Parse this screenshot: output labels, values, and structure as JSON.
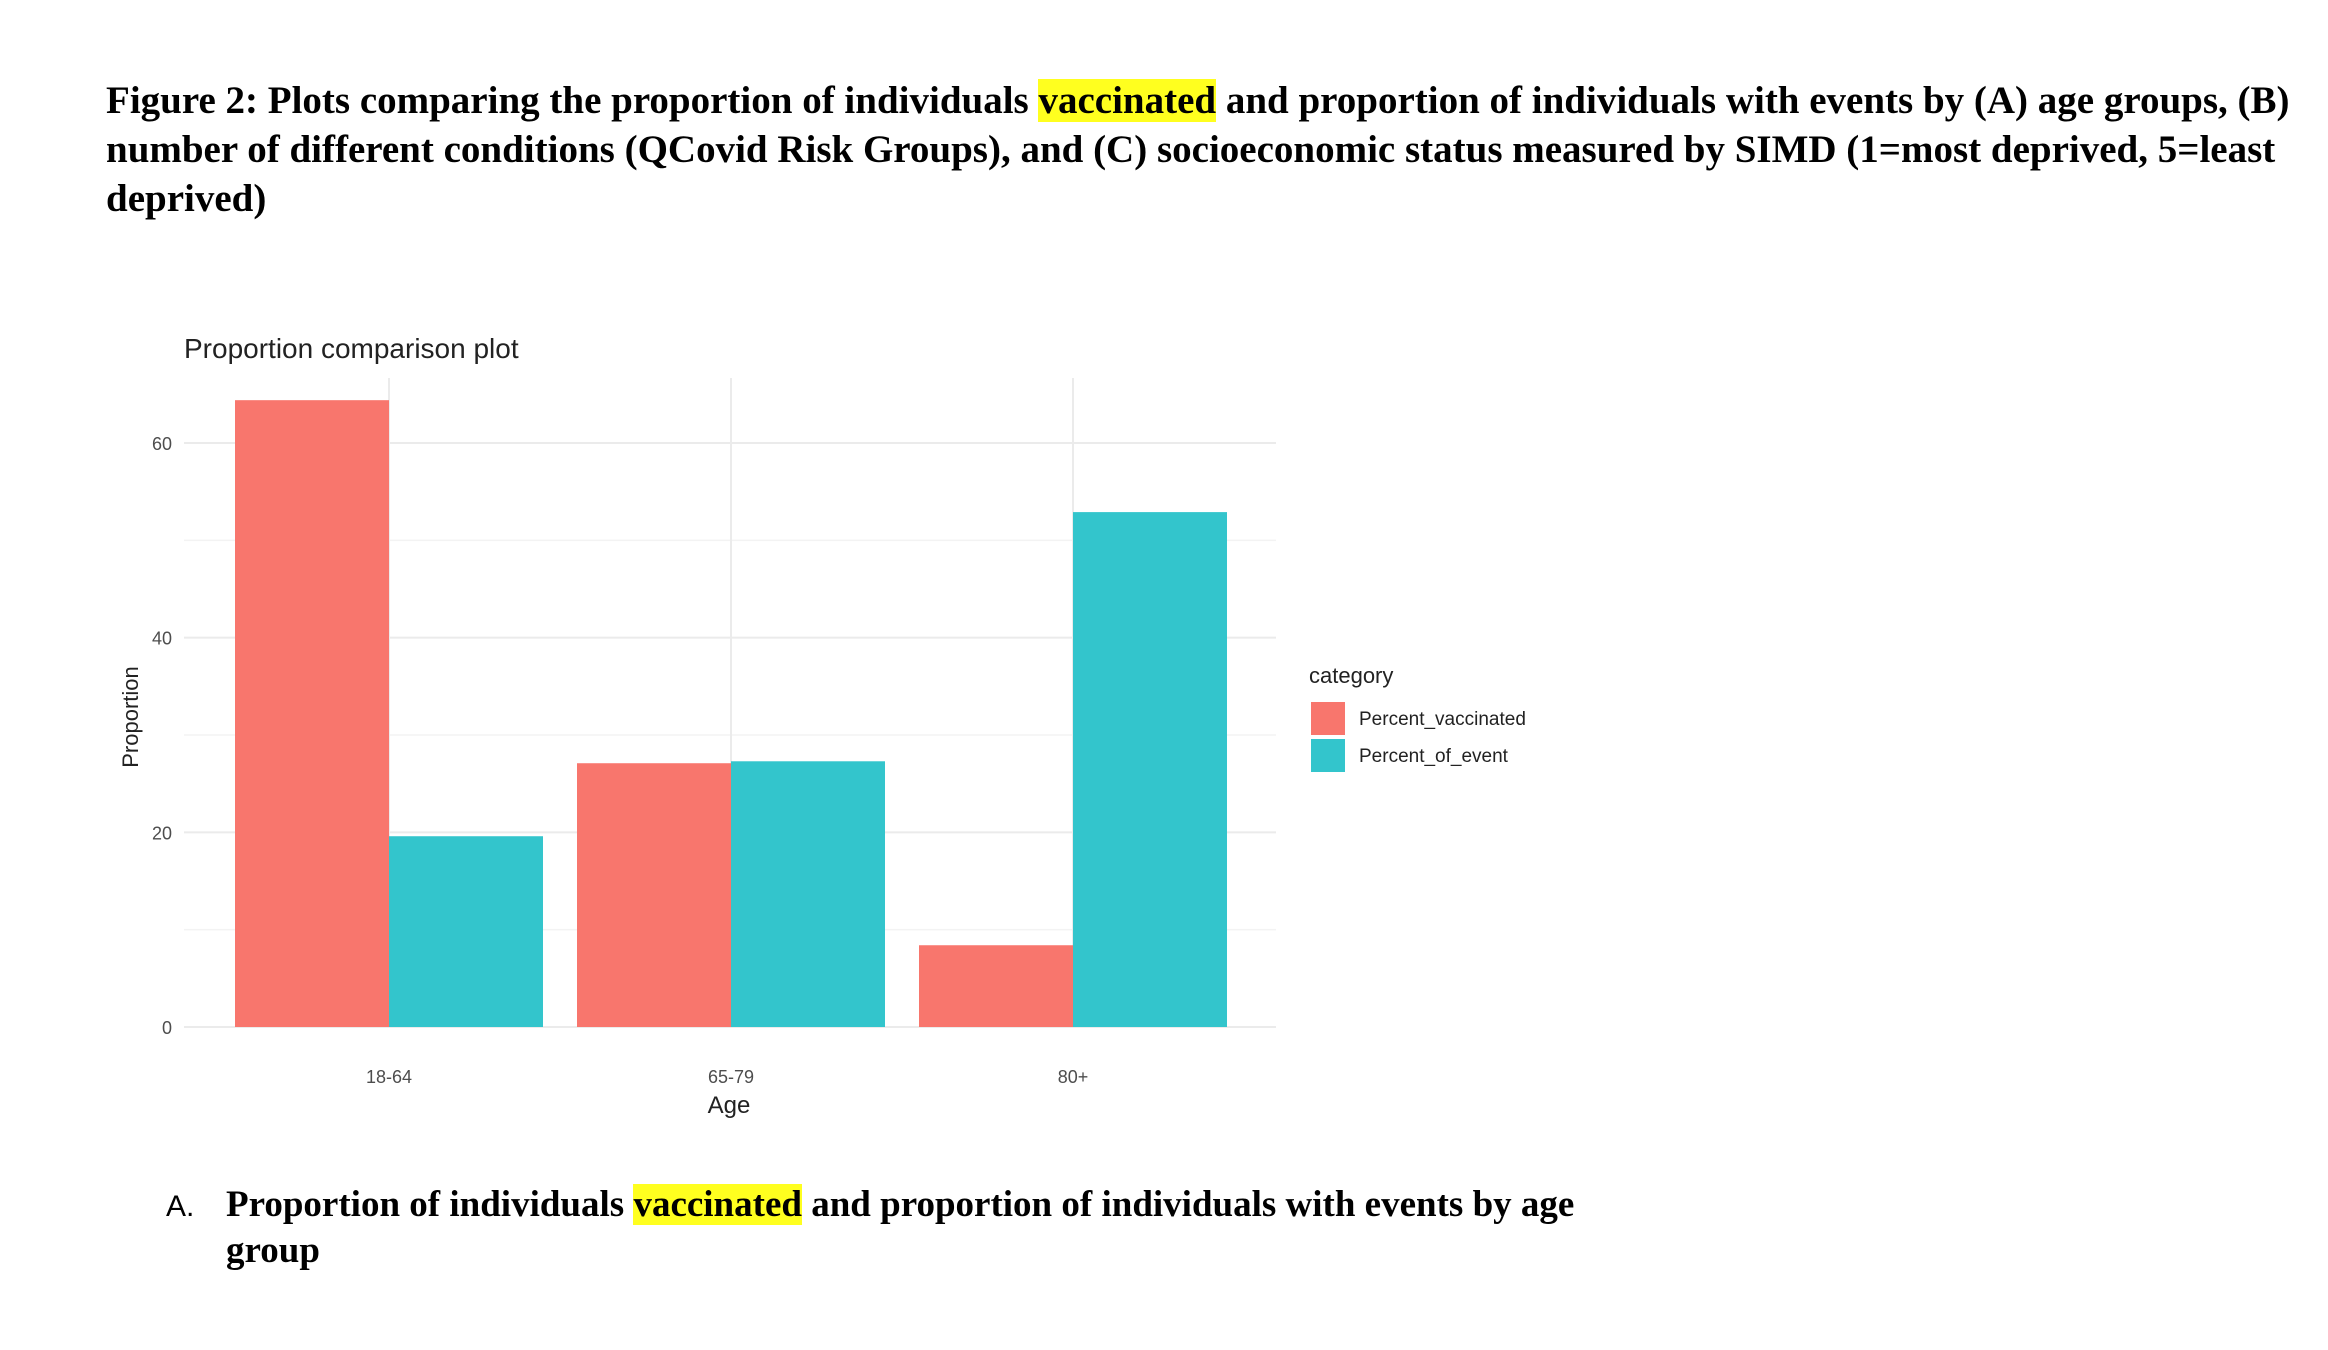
{
  "caption": {
    "prefix": "Figure 2: Plots comparing the proportion of individuals ",
    "highlight": "vaccinated",
    "suffix": " and proportion of individuals with events by (A) age groups, (B) number of different conditions (QCovid Risk Groups), and (C) socioeconomic status measured by SIMD (1=most deprived, 5=least deprived)"
  },
  "subcaption": {
    "letter": "A.",
    "prefix": "Proportion of individuals ",
    "highlight": "vaccinated",
    "suffix": " and proportion of individuals with events by age group"
  },
  "colors": {
    "highlight": "#ffff1f"
  },
  "chart_data": {
    "type": "bar",
    "title": "Proportion comparison plot",
    "xlabel": "Age",
    "ylabel": "Proportion",
    "categories": [
      "18-64",
      "65-79",
      "80+"
    ],
    "series": [
      {
        "name": "Percent_vaccinated",
        "values": [
          64.4,
          27.1,
          8.4
        ],
        "color": "#f8766d"
      },
      {
        "name": "Percent_of_event",
        "values": [
          19.6,
          27.3,
          52.9
        ],
        "color": "#33c5cc"
      }
    ],
    "yticks": [
      0,
      20,
      40,
      60
    ],
    "ylim": [
      0,
      67.5
    ],
    "legend_title": "category",
    "legend_position": "right",
    "grid": true
  }
}
